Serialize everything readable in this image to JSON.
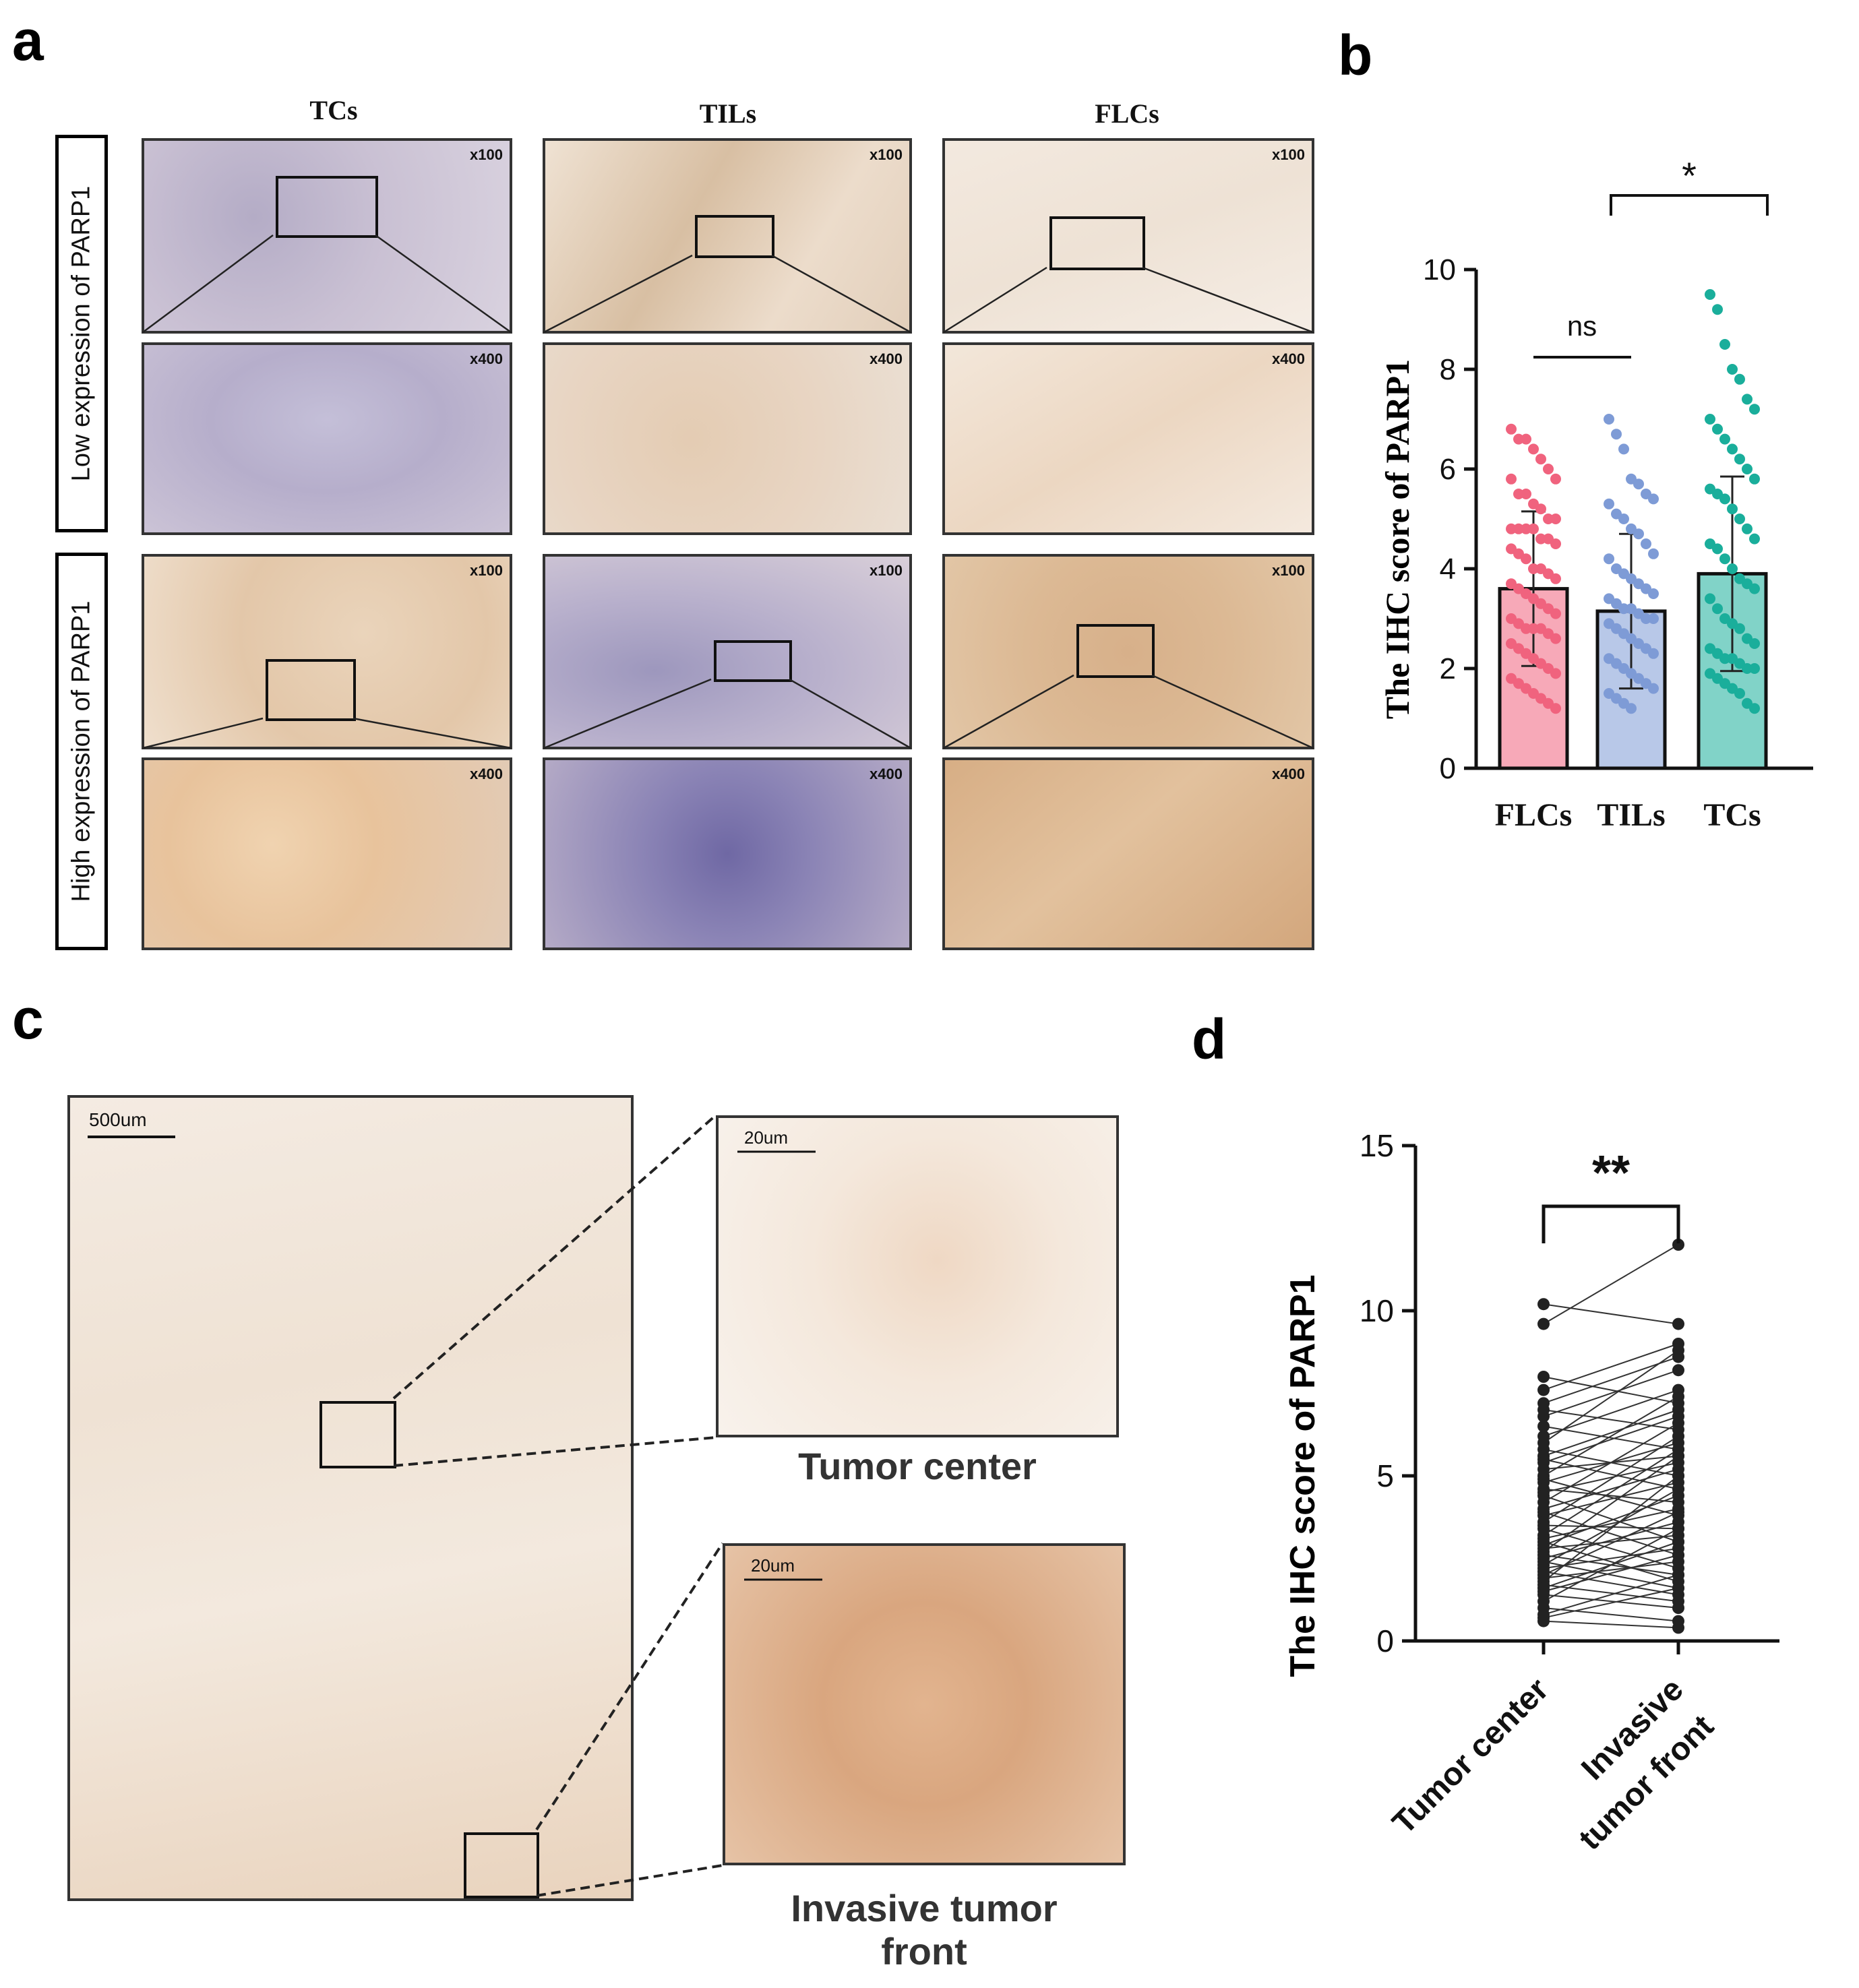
{
  "panels": {
    "a": "a",
    "b": "b",
    "c": "c",
    "d": "d"
  },
  "panel_a": {
    "columns": [
      "TCs",
      "TILs",
      "FLCs"
    ],
    "rows": [
      "Low expression of PARP1",
      "High expression of PARP1"
    ],
    "mag_low": "x100",
    "mag_high": "x400"
  },
  "panel_c": {
    "scale_main": "500um",
    "scale_inset": "20um",
    "inset_top_label": "Tumor center",
    "inset_bottom_label_line1": "Invasive tumor",
    "inset_bottom_label_line2": "front"
  },
  "colors": {
    "flcs": "#F0637E",
    "tils": "#7E9BD6",
    "tcs": "#1AAE9B",
    "ihc_brown": "#C08A55",
    "hema_blue": "#7A78B0"
  },
  "chart_data": [
    {
      "type": "bar",
      "categories": [
        "FLCs",
        "TILs",
        "TCs"
      ],
      "values": [
        3.6,
        3.15,
        3.9
      ],
      "sd": [
        1.55,
        1.55,
        1.95
      ],
      "ylabel": "The IHC score of PARP1",
      "ylim": [
        0,
        10
      ],
      "yticks": [
        "0",
        "2",
        "4",
        "6",
        "8",
        "10"
      ],
      "significance": [
        {
          "between": [
            "FLCs",
            "TILs"
          ],
          "label": "ns"
        },
        {
          "between": [
            "TILs",
            "TCs"
          ],
          "label": "*"
        }
      ],
      "points": {
        "FLCs": [
          6.8,
          6.6,
          6.6,
          6.4,
          6.2,
          6.0,
          5.8,
          5.8,
          5.5,
          5.5,
          5.3,
          5.2,
          5.0,
          5.0,
          4.8,
          4.8,
          4.8,
          4.8,
          4.6,
          4.6,
          4.5,
          4.4,
          4.3,
          4.2,
          4.0,
          4.0,
          3.9,
          3.8,
          3.7,
          3.6,
          3.5,
          3.4,
          3.3,
          3.2,
          3.1,
          3.0,
          2.9,
          2.8,
          2.8,
          2.8,
          2.7,
          2.6,
          2.5,
          2.4,
          2.3,
          2.2,
          2.1,
          2.0,
          1.9,
          1.8,
          1.7,
          1.6,
          1.5,
          1.4,
          1.3,
          1.2
        ],
        "TILs": [
          7.0,
          6.7,
          6.4,
          5.8,
          5.7,
          5.5,
          5.4,
          5.3,
          5.1,
          5.0,
          4.8,
          4.7,
          4.5,
          4.3,
          4.2,
          4.0,
          3.9,
          3.8,
          3.7,
          3.6,
          3.5,
          3.4,
          3.3,
          3.2,
          3.2,
          3.1,
          3.0,
          3.0,
          2.9,
          2.8,
          2.7,
          2.6,
          2.5,
          2.4,
          2.3,
          2.2,
          2.1,
          2.0,
          1.9,
          1.8,
          1.7,
          1.6,
          1.5,
          1.4,
          1.3,
          1.2
        ],
        "TCs": [
          9.5,
          9.2,
          8.5,
          8.0,
          7.8,
          7.4,
          7.2,
          7.0,
          6.8,
          6.6,
          6.4,
          6.2,
          6.0,
          5.8,
          5.6,
          5.5,
          5.4,
          5.2,
          5.0,
          4.8,
          4.6,
          4.5,
          4.4,
          4.2,
          4.0,
          3.8,
          3.7,
          3.6,
          3.4,
          3.2,
          3.0,
          2.9,
          2.8,
          2.6,
          2.5,
          2.4,
          2.3,
          2.2,
          2.2,
          2.1,
          2.0,
          2.0,
          1.9,
          1.8,
          1.7,
          1.6,
          1.5,
          1.3,
          1.2
        ]
      }
    },
    {
      "type": "line",
      "subtype": "paired",
      "categories": [
        "Tumor center",
        "Invasive tumor front"
      ],
      "ylabel": "The IHC score of PARP1",
      "ylim": [
        0,
        15
      ],
      "yticks": [
        "0",
        "5",
        "10",
        "15"
      ],
      "significance": [
        {
          "between": [
            "Tumor center",
            "Invasive tumor front"
          ],
          "label": "**"
        }
      ],
      "pairs": [
        [
          10.2,
          9.6
        ],
        [
          9.6,
          12.0
        ],
        [
          8.0,
          7.2
        ],
        [
          7.6,
          9.0
        ],
        [
          7.2,
          8.6
        ],
        [
          7.0,
          6.4
        ],
        [
          6.8,
          8.2
        ],
        [
          6.5,
          5.8
        ],
        [
          6.2,
          7.6
        ],
        [
          6.0,
          8.8
        ],
        [
          5.8,
          5.0
        ],
        [
          5.6,
          7.0
        ],
        [
          5.5,
          4.6
        ],
        [
          5.4,
          6.8
        ],
        [
          5.2,
          5.6
        ],
        [
          5.0,
          7.4
        ],
        [
          4.9,
          3.8
        ],
        [
          4.8,
          6.0
        ],
        [
          4.6,
          4.2
        ],
        [
          4.5,
          5.4
        ],
        [
          4.4,
          3.0
        ],
        [
          4.2,
          6.6
        ],
        [
          4.0,
          5.2
        ],
        [
          3.9,
          2.6
        ],
        [
          3.8,
          4.8
        ],
        [
          3.6,
          6.2
        ],
        [
          3.5,
          3.4
        ],
        [
          3.4,
          2.2
        ],
        [
          3.2,
          5.8
        ],
        [
          3.1,
          4.0
        ],
        [
          3.0,
          1.8
        ],
        [
          2.9,
          4.4
        ],
        [
          2.8,
          3.2
        ],
        [
          2.7,
          5.6
        ],
        [
          2.6,
          2.0
        ],
        [
          2.5,
          3.6
        ],
        [
          2.4,
          1.6
        ],
        [
          2.3,
          4.6
        ],
        [
          2.2,
          2.8
        ],
        [
          2.1,
          1.4
        ],
        [
          2.0,
          3.9
        ],
        [
          1.9,
          2.4
        ],
        [
          1.8,
          5.0
        ],
        [
          1.7,
          1.2
        ],
        [
          1.6,
          3.0
        ],
        [
          1.5,
          2.6
        ],
        [
          1.4,
          1.0
        ],
        [
          1.2,
          3.4
        ],
        [
          1.0,
          0.6
        ],
        [
          0.8,
          2.0
        ],
        [
          0.6,
          0.4
        ],
        [
          0.7,
          1.6
        ]
      ]
    }
  ]
}
